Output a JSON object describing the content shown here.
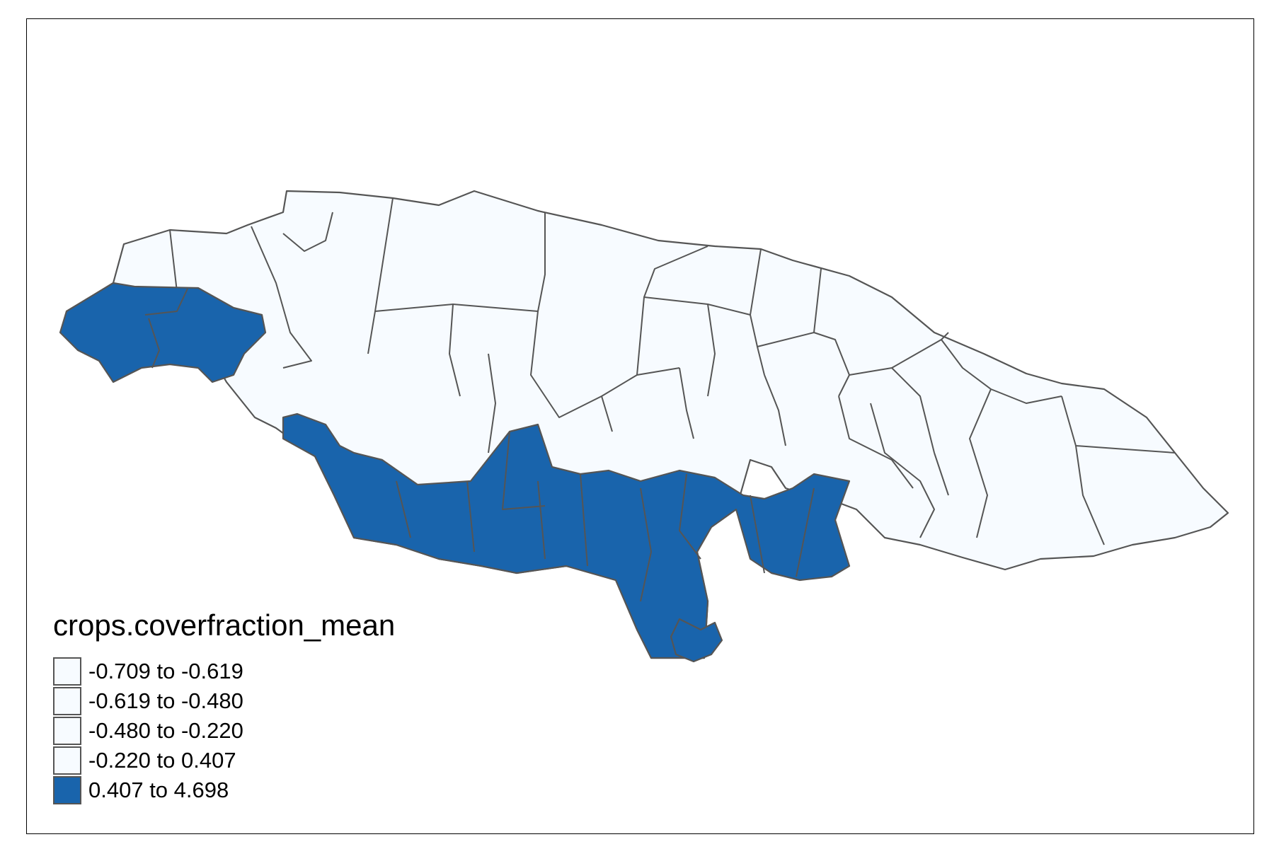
{
  "legend": {
    "title": "crops.coverfraction_mean",
    "items": [
      {
        "label": "-0.709 to -0.619",
        "color": "#f7fbff"
      },
      {
        "label": "-0.619 to -0.480",
        "color": "#f7fbff"
      },
      {
        "label": "-0.480 to -0.220",
        "color": "#f7fbff"
      },
      {
        "label": "-0.220 to 0.407",
        "color": "#f7fbff"
      },
      {
        "label": "0.407 to 4.698",
        "color": "#1964ac"
      }
    ]
  },
  "colors": {
    "low": "#f7fbff",
    "high": "#1964ac",
    "border": "#555555",
    "frame": "#000000"
  }
}
